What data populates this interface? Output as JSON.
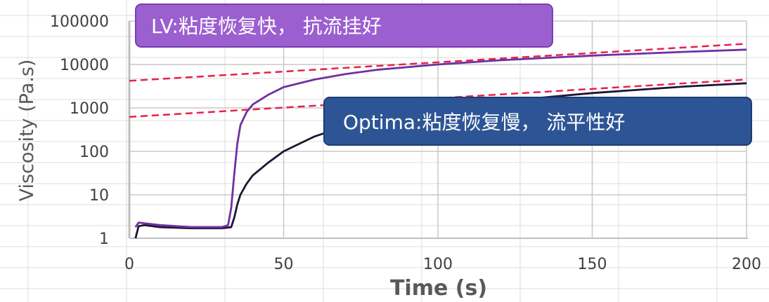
{
  "chart_data": {
    "type": "line",
    "xlabel": "Time (s)",
    "ylabel": "Viscosity (Pa.s)",
    "xlim": [
      0,
      200
    ],
    "ylim": [
      1,
      100000
    ],
    "yscale": "log",
    "grid": true,
    "x_ticks": [
      "0",
      "50",
      "100",
      "150",
      "200"
    ],
    "y_ticks": [
      "1",
      "10",
      "100",
      "1000",
      "10000",
      "100000"
    ],
    "x_tick_values": [
      0,
      50,
      100,
      150,
      200
    ],
    "y_tick_values": [
      1,
      10,
      100,
      1000,
      10000,
      100000
    ],
    "series": [
      {
        "color": "#7030a0",
        "x": [
          2,
          3,
          5,
          10,
          20,
          30,
          32,
          33,
          34,
          35,
          36,
          38,
          40,
          45,
          50,
          60,
          70,
          80,
          100,
          120,
          150,
          180,
          200
        ],
        "y": [
          1.8,
          2.3,
          2.2,
          2.0,
          1.8,
          1.8,
          2.0,
          5,
          30,
          150,
          400,
          800,
          1200,
          2000,
          3000,
          4500,
          6000,
          7500,
          10000,
          12500,
          16000,
          19500,
          22000
        ]
      },
      {
        "color": "#1f1535",
        "x": [
          2,
          3,
          5,
          10,
          20,
          30,
          33,
          34,
          35,
          36,
          38,
          40,
          45,
          50,
          60,
          70,
          80,
          100,
          120,
          150,
          180,
          200
        ],
        "y": [
          1.0,
          1.9,
          2.0,
          1.8,
          1.7,
          1.7,
          1.8,
          3,
          6,
          10,
          18,
          28,
          55,
          100,
          220,
          380,
          550,
          900,
          1400,
          2200,
          3100,
          3700
        ]
      }
    ],
    "reference_lines": [
      {
        "color": "#e8204a",
        "style": "dashed",
        "x": [
          0,
          200
        ],
        "y": [
          4200,
          30000
        ]
      },
      {
        "color": "#e8204a",
        "style": "dashed",
        "x": [
          0,
          200
        ],
        "y": [
          620,
          4500
        ]
      }
    ],
    "annotations": [
      {
        "text": "LV:粘度恢复快， 抗流挂好",
        "fill": "#9b5fcf",
        "stroke": "#7a3eb0"
      },
      {
        "text": "Optima:粘度恢复慢， 流平性好",
        "fill": "#2d5595",
        "stroke": "#1e3d73"
      }
    ]
  }
}
